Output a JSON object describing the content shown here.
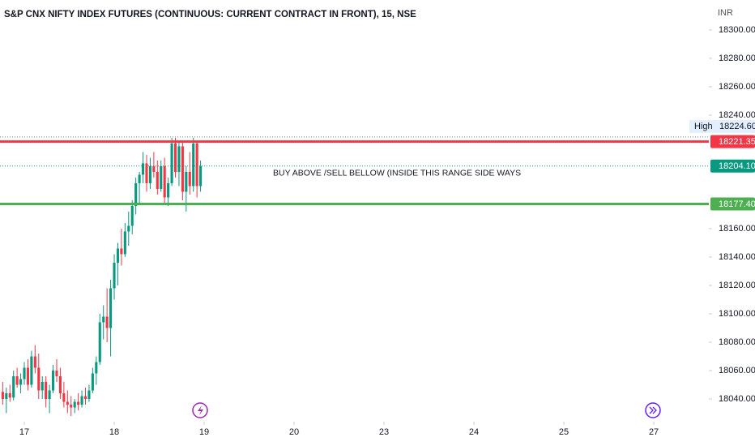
{
  "chart_data": {
    "type": "candlestick",
    "title": "S&P CNX NIFTY INDEX FUTURES (CONTINUOUS: CURRENT CONTRACT IN FRONT), 15, NSE",
    "currency": "INR",
    "annotation": "BUY ABOVE /SELL BELLOW (INSIDE THIS RANGE SIDE WAYS",
    "up_color": "#089981",
    "down_color": "#f23645",
    "x": [
      -6,
      -5,
      -4,
      -3,
      -2,
      -1,
      0,
      1,
      2,
      3,
      4,
      5,
      6,
      7,
      8,
      9,
      10,
      11,
      12,
      13,
      14,
      15,
      16,
      17,
      18,
      19,
      20,
      21,
      22,
      23,
      24,
      25,
      26,
      27,
      28,
      29,
      30,
      31,
      32,
      33,
      34,
      35,
      36,
      37,
      38,
      39,
      40,
      41,
      42,
      43,
      44,
      45,
      46,
      47,
      48,
      49
    ],
    "open": [
      18045,
      18040,
      18044,
      18041,
      18056,
      18050,
      18054,
      18062,
      18050,
      18070,
      18062,
      18046,
      18052,
      18040,
      18046,
      18060,
      18056,
      18044,
      18038,
      18036,
      18034,
      18038,
      18036,
      18042,
      18040,
      18046,
      18058,
      18066,
      18094,
      18098,
      18090,
      18118,
      18136,
      18146,
      18142,
      18158,
      18162,
      18176,
      18192,
      18198,
      18206,
      18192,
      18204,
      18200,
      18188,
      18204,
      18182,
      18192,
      18220,
      18200,
      18218,
      18186,
      18200,
      18190,
      18220,
      18190
    ],
    "high": [
      18052,
      18048,
      18050,
      18060,
      18062,
      18058,
      18066,
      18068,
      18074,
      18078,
      18072,
      18056,
      18056,
      18050,
      18064,
      18068,
      18062,
      18052,
      18046,
      18042,
      18040,
      18044,
      18046,
      18048,
      18050,
      18062,
      18070,
      18100,
      18106,
      18118,
      18124,
      18142,
      18150,
      18160,
      18164,
      18172,
      18180,
      18196,
      18200,
      18214,
      18212,
      18210,
      18214,
      18208,
      18208,
      18210,
      18196,
      18224,
      18224,
      18222,
      18222,
      18204,
      18214,
      18224,
      18222,
      18208
    ],
    "low": [
      18036,
      18030,
      18038,
      18039,
      18048,
      18044,
      18050,
      18046,
      18048,
      18058,
      18040,
      18040,
      18034,
      18030,
      18044,
      18052,
      18040,
      18034,
      18030,
      18028,
      18030,
      18032,
      18034,
      18036,
      18038,
      18044,
      18050,
      18064,
      18082,
      18080,
      18070,
      18110,
      18120,
      18134,
      18140,
      18148,
      18156,
      18170,
      18178,
      18192,
      18186,
      18188,
      18196,
      18184,
      18186,
      18178,
      18176,
      18190,
      18196,
      18190,
      18180,
      18172,
      18184,
      18186,
      18182,
      18186
    ],
    "close": [
      18040,
      18044,
      18041,
      18056,
      18050,
      18054,
      18062,
      18050,
      18070,
      18062,
      18046,
      18052,
      18040,
      18046,
      18060,
      18056,
      18044,
      18038,
      18036,
      18034,
      18038,
      18036,
      18042,
      18040,
      18046,
      18058,
      18066,
      18094,
      18098,
      18090,
      18118,
      18136,
      18146,
      18142,
      18158,
      18162,
      18176,
      18192,
      18198,
      18206,
      18192,
      18204,
      18200,
      18188,
      18204,
      18182,
      18192,
      18220,
      18200,
      18218,
      18186,
      18200,
      18190,
      18220,
      18190,
      18204.1
    ],
    "xlim": [
      -6.76,
      190.3
    ],
    "xticks": [
      {
        "value": 0,
        "label": "17"
      },
      {
        "value": 25,
        "label": "18"
      },
      {
        "value": 50,
        "label": "19"
      },
      {
        "value": 75,
        "label": "20"
      },
      {
        "value": 100,
        "label": "23"
      },
      {
        "value": 125,
        "label": "24"
      },
      {
        "value": 150,
        "label": "25"
      },
      {
        "value": 175,
        "label": "27"
      }
    ],
    "ylim": [
      18024,
      18321.1
    ],
    "yticks": [
      {
        "value": 18300,
        "label": "18300.00"
      },
      {
        "value": 18280,
        "label": "18280.00"
      },
      {
        "value": 18260,
        "label": "18260.00"
      },
      {
        "value": 18240,
        "label": "18240.00"
      },
      {
        "value": 18160,
        "label": "18160.00"
      },
      {
        "value": 18140,
        "label": "18140.00"
      },
      {
        "value": 18120,
        "label": "18120.00"
      },
      {
        "value": 18100,
        "label": "18100.00"
      },
      {
        "value": 18080,
        "label": "18080.00"
      },
      {
        "value": 18060,
        "label": "18060.00"
      },
      {
        "value": 18040,
        "label": "18040.00"
      }
    ],
    "hlines": [
      {
        "value": 18224.6,
        "value_label": "18224.60",
        "name": "High",
        "color": "#787b86",
        "style": "dotted"
      },
      {
        "value": 18221.35,
        "value_label": "18221.35",
        "color": "#f23645",
        "style": "solid"
      },
      {
        "value": 18204.1,
        "value_label": "18204.10",
        "color": "#089981",
        "style": "dotted"
      },
      {
        "value": 18177.4,
        "value_label": "18177.40",
        "color": "#4caf50",
        "style": "solid"
      }
    ]
  }
}
